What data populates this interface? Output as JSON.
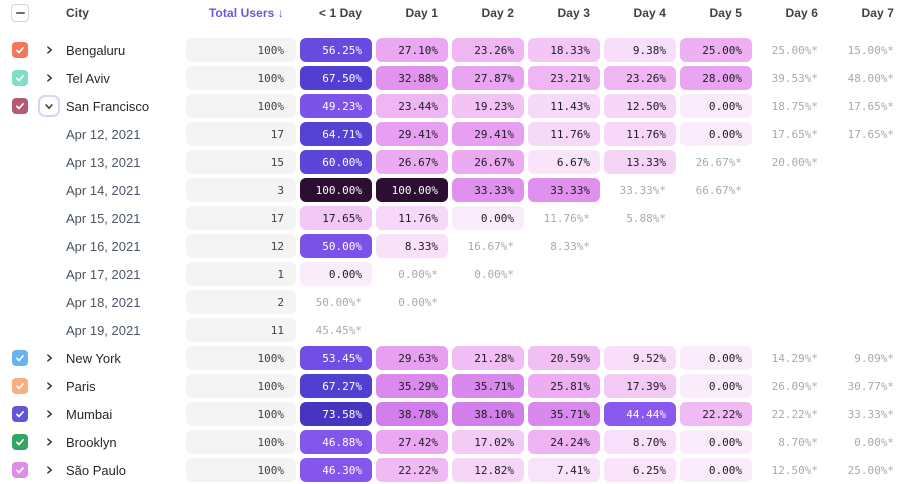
{
  "table": {
    "columns": {
      "city": "City",
      "total": "Total Users ↓",
      "days": [
        "< 1 Day",
        "Day 1",
        "Day 2",
        "Day 3",
        "Day 4",
        "Day 5",
        "Day 6",
        "Day 7"
      ]
    },
    "rows": [
      {
        "kind": "city",
        "city": "Bengaluru",
        "swatch": "#F6765C",
        "expanded": false,
        "total": "100%",
        "cells": [
          {
            "t": "56.25%",
            "v": 56.25
          },
          {
            "t": "27.10%",
            "v": 27.1
          },
          {
            "t": "23.26%",
            "v": 23.26
          },
          {
            "t": "18.33%",
            "v": 18.33
          },
          {
            "t": "9.38%",
            "v": 9.38
          },
          {
            "t": "25.00%",
            "v": 25.0
          },
          {
            "t": "25.00%*"
          },
          {
            "t": "15.00%*"
          }
        ]
      },
      {
        "kind": "city",
        "city": "Tel Aviv",
        "swatch": "#7EDEC9",
        "expanded": false,
        "total": "100%",
        "cells": [
          {
            "t": "67.50%",
            "v": 67.5
          },
          {
            "t": "32.88%",
            "v": 32.88
          },
          {
            "t": "27.87%",
            "v": 27.87
          },
          {
            "t": "23.21%",
            "v": 23.21
          },
          {
            "t": "23.26%",
            "v": 23.26
          },
          {
            "t": "28.00%",
            "v": 28.0
          },
          {
            "t": "39.53%*"
          },
          {
            "t": "48.00%*"
          }
        ]
      },
      {
        "kind": "city",
        "city": "San Francisco",
        "swatch": "#B45B70",
        "expanded": true,
        "total": "100%",
        "cells": [
          {
            "t": "49.23%",
            "v": 49.23
          },
          {
            "t": "23.44%",
            "v": 23.44
          },
          {
            "t": "19.23%",
            "v": 19.23
          },
          {
            "t": "11.43%",
            "v": 11.43
          },
          {
            "t": "12.50%",
            "v": 12.5
          },
          {
            "t": "0.00%",
            "v": 0
          },
          {
            "t": "18.75%*"
          },
          {
            "t": "17.65%*"
          }
        ]
      },
      {
        "kind": "date",
        "city": "Apr 12, 2021",
        "total": "17",
        "cells": [
          {
            "t": "64.71%",
            "v": 64.71
          },
          {
            "t": "29.41%",
            "v": 29.41
          },
          {
            "t": "29.41%",
            "v": 29.41
          },
          {
            "t": "11.76%",
            "v": 11.76
          },
          {
            "t": "11.76%",
            "v": 11.76
          },
          {
            "t": "0.00%",
            "v": 0
          },
          {
            "t": "17.65%*"
          },
          {
            "t": "17.65%*"
          }
        ]
      },
      {
        "kind": "date",
        "city": "Apr 13, 2021",
        "total": "15",
        "cells": [
          {
            "t": "60.00%",
            "v": 60.0
          },
          {
            "t": "26.67%",
            "v": 26.67
          },
          {
            "t": "26.67%",
            "v": 26.67
          },
          {
            "t": "6.67%",
            "v": 6.67
          },
          {
            "t": "13.33%",
            "v": 13.33
          },
          {
            "t": "26.67%*"
          },
          {
            "t": "20.00%*"
          },
          {
            "t": ""
          }
        ]
      },
      {
        "kind": "date",
        "city": "Apr 14, 2021",
        "total": "3",
        "cells": [
          {
            "t": "100.00%",
            "v": 100
          },
          {
            "t": "100.00%",
            "v": 100
          },
          {
            "t": "33.33%",
            "v": 33.33
          },
          {
            "t": "33.33%",
            "v": 33.33
          },
          {
            "t": "33.33%*"
          },
          {
            "t": "66.67%*"
          },
          {
            "t": ""
          },
          {
            "t": ""
          }
        ]
      },
      {
        "kind": "date",
        "city": "Apr 15, 2021",
        "total": "17",
        "cells": [
          {
            "t": "17.65%",
            "v": 17.65
          },
          {
            "t": "11.76%",
            "v": 11.76
          },
          {
            "t": "0.00%",
            "v": 0
          },
          {
            "t": "11.76%*"
          },
          {
            "t": "5.88%*"
          },
          {
            "t": ""
          },
          {
            "t": ""
          },
          {
            "t": ""
          }
        ]
      },
      {
        "kind": "date",
        "city": "Apr 16, 2021",
        "total": "12",
        "cells": [
          {
            "t": "50.00%",
            "v": 50.0
          },
          {
            "t": "8.33%",
            "v": 8.33
          },
          {
            "t": "16.67%*"
          },
          {
            "t": "8.33%*"
          },
          {
            "t": ""
          },
          {
            "t": ""
          },
          {
            "t": ""
          },
          {
            "t": ""
          }
        ]
      },
      {
        "kind": "date",
        "city": "Apr 17, 2021",
        "total": "1",
        "cells": [
          {
            "t": "0.00%",
            "v": 0
          },
          {
            "t": "0.00%*"
          },
          {
            "t": "0.00%*"
          },
          {
            "t": ""
          },
          {
            "t": ""
          },
          {
            "t": ""
          },
          {
            "t": ""
          },
          {
            "t": ""
          }
        ]
      },
      {
        "kind": "date",
        "city": "Apr 18, 2021",
        "total": "2",
        "cells": [
          {
            "t": "50.00%*"
          },
          {
            "t": "0.00%*"
          },
          {
            "t": ""
          },
          {
            "t": ""
          },
          {
            "t": ""
          },
          {
            "t": ""
          },
          {
            "t": ""
          },
          {
            "t": ""
          }
        ]
      },
      {
        "kind": "date",
        "city": "Apr 19, 2021",
        "total": "11",
        "cells": [
          {
            "t": "45.45%*"
          },
          {
            "t": ""
          },
          {
            "t": ""
          },
          {
            "t": ""
          },
          {
            "t": ""
          },
          {
            "t": ""
          },
          {
            "t": ""
          },
          {
            "t": ""
          }
        ]
      },
      {
        "kind": "city",
        "city": "New York",
        "swatch": "#64B5F1",
        "expanded": false,
        "total": "100%",
        "cells": [
          {
            "t": "53.45%",
            "v": 53.45
          },
          {
            "t": "29.63%",
            "v": 29.63
          },
          {
            "t": "21.28%",
            "v": 21.28
          },
          {
            "t": "20.59%",
            "v": 20.59
          },
          {
            "t": "9.52%",
            "v": 9.52
          },
          {
            "t": "0.00%",
            "v": 0
          },
          {
            "t": "14.29%*"
          },
          {
            "t": "9.09%*"
          }
        ]
      },
      {
        "kind": "city",
        "city": "Paris",
        "swatch": "#F8AE7F",
        "expanded": false,
        "total": "100%",
        "cells": [
          {
            "t": "67.27%",
            "v": 67.27
          },
          {
            "t": "35.29%",
            "v": 35.29
          },
          {
            "t": "35.71%",
            "v": 35.71
          },
          {
            "t": "25.81%",
            "v": 25.81
          },
          {
            "t": "17.39%",
            "v": 17.39
          },
          {
            "t": "0.00%",
            "v": 0
          },
          {
            "t": "26.09%*"
          },
          {
            "t": "30.77%*"
          }
        ]
      },
      {
        "kind": "city",
        "city": "Mumbai",
        "swatch": "#6156D8",
        "expanded": false,
        "total": "100%",
        "cells": [
          {
            "t": "73.58%",
            "v": 73.58
          },
          {
            "t": "38.78%",
            "v": 38.78
          },
          {
            "t": "38.10%",
            "v": 38.1
          },
          {
            "t": "35.71%",
            "v": 35.71
          },
          {
            "t": "44.44%",
            "v": 44.44
          },
          {
            "t": "22.22%",
            "v": 22.22
          },
          {
            "t": "22.22%*"
          },
          {
            "t": "33.33%*"
          }
        ]
      },
      {
        "kind": "city",
        "city": "Brooklyn",
        "swatch": "#35A564",
        "expanded": false,
        "total": "100%",
        "cells": [
          {
            "t": "46.88%",
            "v": 46.88
          },
          {
            "t": "27.42%",
            "v": 27.42
          },
          {
            "t": "17.02%",
            "v": 17.02
          },
          {
            "t": "24.24%",
            "v": 24.24
          },
          {
            "t": "8.70%",
            "v": 8.7
          },
          {
            "t": "0.00%",
            "v": 0
          },
          {
            "t": "8.70%*"
          },
          {
            "t": "0.00%*"
          }
        ]
      },
      {
        "kind": "city",
        "city": "São Paulo",
        "swatch": "#DB8FE8",
        "expanded": false,
        "total": "100%",
        "cells": [
          {
            "t": "46.30%",
            "v": 46.3
          },
          {
            "t": "22.22%",
            "v": 22.22
          },
          {
            "t": "12.82%",
            "v": 12.82
          },
          {
            "t": "7.41%",
            "v": 7.41
          },
          {
            "t": "6.25%",
            "v": 6.25
          },
          {
            "t": "0.00%",
            "v": 0
          },
          {
            "t": "12.50%*"
          },
          {
            "t": "25.00%*"
          }
        ]
      }
    ]
  },
  "colors": {
    "accent": "#635BD9",
    "header_text": "#3F3F46",
    "total_pill_bg": "#F4F4F5",
    "footnote_text": "#A8A8B3",
    "dark_cell_text": "#1C1C21",
    "white_cell_text": "#FFFFFF",
    "white_text_threshold": 44,
    "scale": [
      [
        0,
        "#FBECFC"
      ],
      [
        8,
        "#F9E2FA"
      ],
      [
        16,
        "#F5CDF7"
      ],
      [
        24,
        "#EFB4F4"
      ],
      [
        32,
        "#E396EF"
      ],
      [
        40,
        "#CE78EA"
      ],
      [
        44,
        "#8B59EE"
      ],
      [
        52,
        "#7450E6"
      ],
      [
        60,
        "#5C46D9"
      ],
      [
        68,
        "#4F3FD0"
      ],
      [
        74,
        "#4633BE"
      ],
      [
        100,
        "#2B0E32"
      ]
    ]
  }
}
